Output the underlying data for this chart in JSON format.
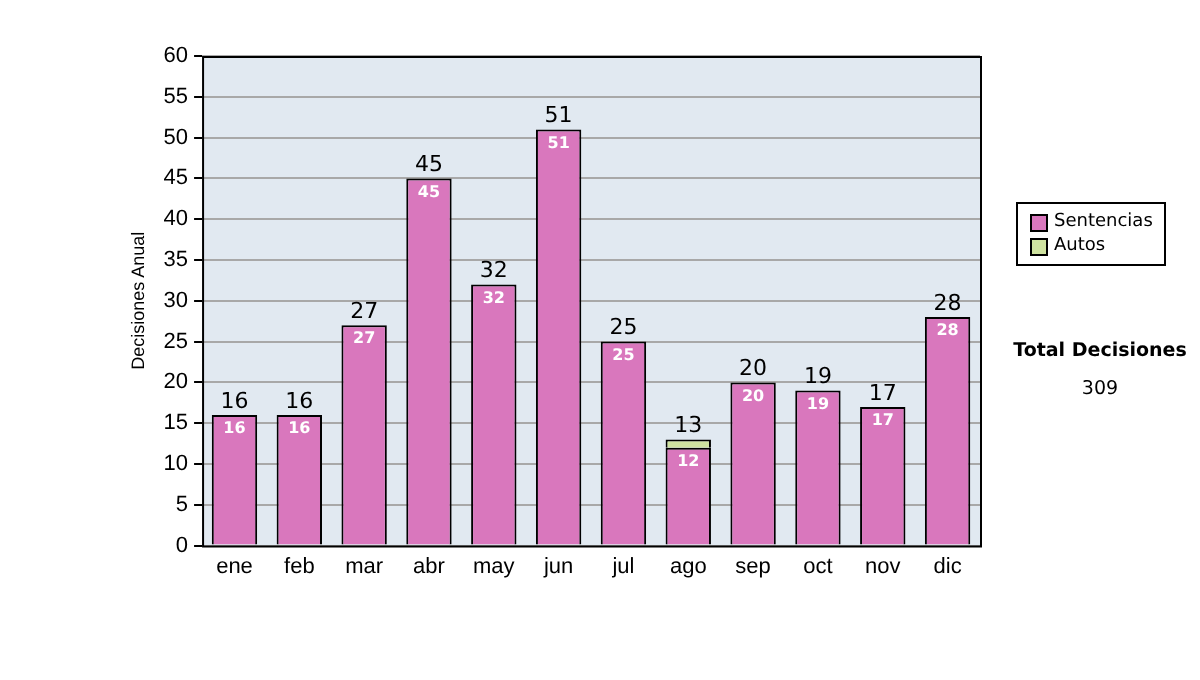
{
  "chart_data": {
    "type": "bar",
    "ylabel": "Decisiones Anual",
    "categories": [
      "ene",
      "feb",
      "mar",
      "abr",
      "may",
      "jun",
      "jul",
      "ago",
      "sep",
      "oct",
      "nov",
      "dic"
    ],
    "series": [
      {
        "name": "Sentencias",
        "color": "#d977bd",
        "values": [
          16,
          16,
          27,
          45,
          32,
          51,
          25,
          12,
          20,
          19,
          17,
          28
        ],
        "value_labels": [
          "16",
          "16",
          "27",
          "45",
          "32",
          "51",
          "25",
          "12",
          "20",
          "19",
          "17",
          "28"
        ]
      },
      {
        "name": "Autos",
        "color": "#cfe3a0",
        "values": [
          0,
          0,
          0,
          0,
          0,
          0,
          0,
          1,
          0,
          0,
          0,
          0
        ]
      }
    ],
    "stacked": true,
    "totals": [
      "16",
      "16",
      "27",
      "45",
      "32",
      "51",
      "25",
      "13",
      "20",
      "19",
      "17",
      "28"
    ],
    "ylim": [
      0,
      60
    ],
    "yticks": [
      0,
      5,
      10,
      15,
      20,
      25,
      30,
      35,
      40,
      45,
      50,
      55,
      60
    ],
    "grid": "y",
    "legend": "right",
    "annotations": [
      "Total Decisiones",
      "309"
    ]
  }
}
